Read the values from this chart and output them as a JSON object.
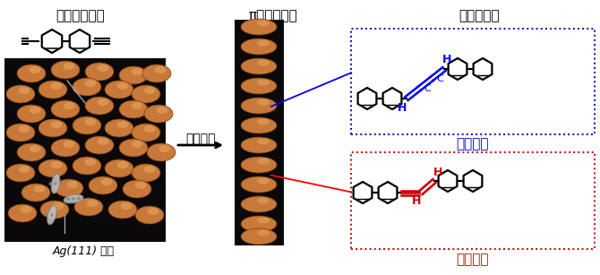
{
  "title_left": "末端アルキン",
  "title_middle": "π骨格の合成",
  "title_right": "化学的同定",
  "label_bottom_left": "Ag(111) 基板",
  "label_arrow": "表面合成",
  "label_cumene": "クムレン",
  "label_enyne": "エンイン",
  "bg_color": "#ffffff",
  "box_blue_color": "#0000cc",
  "box_red_color": "#cc0000",
  "stm_bg": "#0a0808",
  "bump_color": "#c87838",
  "bump_edge": "#7a4010",
  "bump_highlight": "#e8a860",
  "title_fontsize": 11,
  "label_fontsize": 11
}
